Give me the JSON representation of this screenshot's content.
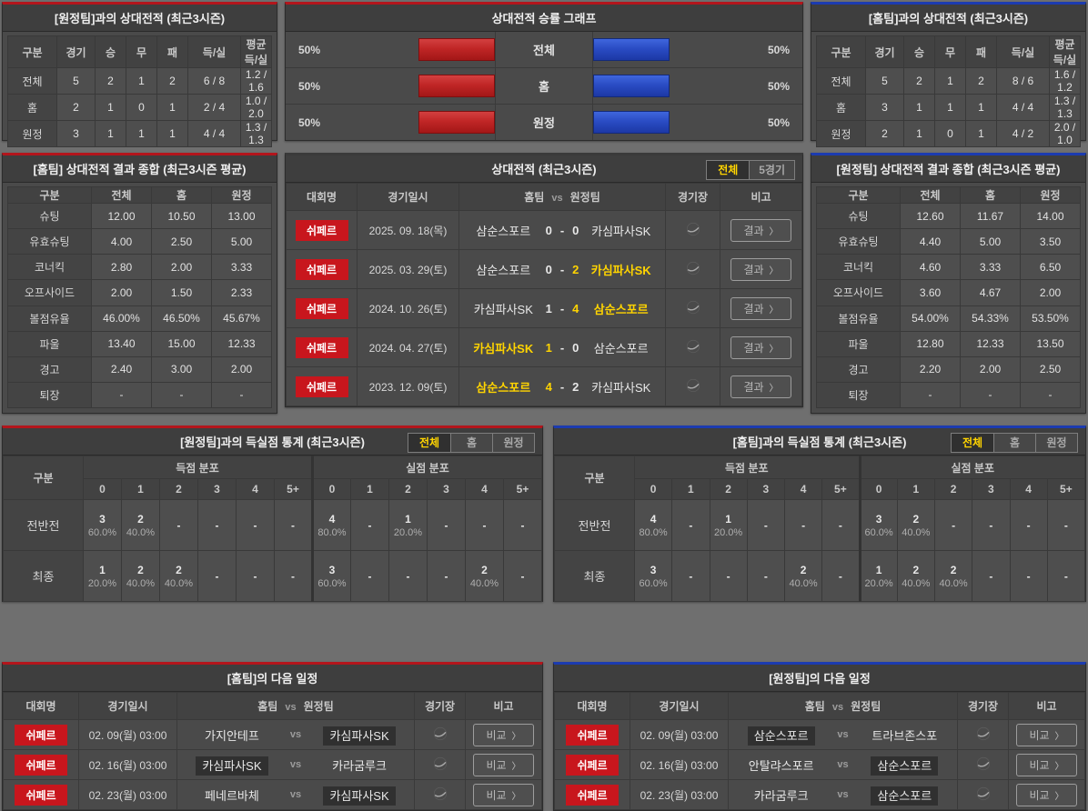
{
  "ui": {
    "vs": "vs",
    "dash": "-",
    "arrow": "〉"
  },
  "colors": {
    "accent_red": "#b3151c",
    "accent_blue": "#1c3bb0",
    "bar_red": "#c02626",
    "bar_blue": "#2a4cc4",
    "badge_red": "#c8161d",
    "win_yellow": "#ffd400",
    "panel_bg": "#4a4a4a"
  },
  "match_headers": {
    "league": "대회명",
    "datetime": "경기일시",
    "home": "홈팀",
    "vs": "vs",
    "away": "원정팀",
    "stadium": "경기장",
    "note": "비고"
  },
  "goal_common": {
    "gubun": "구분",
    "scored": "득점 분포",
    "conceded": "실점 분포",
    "cols": [
      "0",
      "1",
      "2",
      "3",
      "4",
      "5+"
    ],
    "tabs": [
      "전체",
      "홈",
      "원정"
    ]
  },
  "away_h2h": {
    "title": "[원정팀]과의 상대전적 (최근3시즌)",
    "headers": [
      "구분",
      "경기",
      "승",
      "무",
      "패",
      "득/실",
      "평균 득/실"
    ],
    "rows": [
      {
        "label": "전체",
        "cells": [
          "5",
          "2",
          "1",
          "2",
          "6 / 8",
          "1.2 / 1.6"
        ]
      },
      {
        "label": "홈",
        "cells": [
          "2",
          "1",
          "0",
          "1",
          "2 / 4",
          "1.0 / 2.0"
        ]
      },
      {
        "label": "원정",
        "cells": [
          "3",
          "1",
          "1",
          "1",
          "4 / 4",
          "1.3 / 1.3"
        ]
      }
    ]
  },
  "winrate": {
    "title": "상대전적 승률 그래프",
    "rows": [
      {
        "label": "전체",
        "left_pct": "50%",
        "right_pct": "50%",
        "left_value": 50,
        "right_value": 50
      },
      {
        "label": "홈",
        "left_pct": "50%",
        "right_pct": "50%",
        "left_value": 50,
        "right_value": 50
      },
      {
        "label": "원정",
        "left_pct": "50%",
        "right_pct": "50%",
        "left_value": 50,
        "right_value": 50
      }
    ]
  },
  "home_h2h": {
    "title": "[홈팀]과의 상대전적 (최근3시즌)",
    "headers": [
      "구분",
      "경기",
      "승",
      "무",
      "패",
      "득/실",
      "평균 득/실"
    ],
    "rows": [
      {
        "label": "전체",
        "cells": [
          "5",
          "2",
          "1",
          "2",
          "8 / 6",
          "1.6 / 1.2"
        ]
      },
      {
        "label": "홈",
        "cells": [
          "3",
          "1",
          "1",
          "1",
          "4 / 4",
          "1.3 / 1.3"
        ]
      },
      {
        "label": "원정",
        "cells": [
          "2",
          "1",
          "0",
          "1",
          "4 / 2",
          "2.0 / 1.0"
        ]
      }
    ]
  },
  "home_summary": {
    "title": "[홈팀] 상대전적 결과 종합 (최근3시즌 평균)",
    "headers": [
      "구분",
      "전체",
      "홈",
      "원정"
    ],
    "rows": [
      {
        "label": "슈팅",
        "cells": [
          "12.00",
          "10.50",
          "13.00"
        ]
      },
      {
        "label": "유효슈팅",
        "cells": [
          "4.00",
          "2.50",
          "5.00"
        ]
      },
      {
        "label": "코너킥",
        "cells": [
          "2.80",
          "2.00",
          "3.33"
        ]
      },
      {
        "label": "오프사이드",
        "cells": [
          "2.00",
          "1.50",
          "2.33"
        ]
      },
      {
        "label": "볼점유율",
        "cells": [
          "46.00%",
          "46.50%",
          "45.67%"
        ]
      },
      {
        "label": "파울",
        "cells": [
          "13.40",
          "15.00",
          "12.33"
        ]
      },
      {
        "label": "경고",
        "cells": [
          "2.40",
          "3.00",
          "2.00"
        ]
      },
      {
        "label": "퇴장",
        "cells": [
          "-",
          "-",
          "-"
        ]
      }
    ]
  },
  "h2h_matches": {
    "title": "상대전적 (최근3시즌)",
    "tabs": [
      "전체",
      "5경기"
    ],
    "action": "결과",
    "rows": [
      {
        "league": "쉬페르",
        "date": "2025. 09. 18(목)",
        "home": "삼순스포르",
        "hs": "0",
        "as": "0",
        "away": "카심파사SK"
      },
      {
        "league": "쉬페르",
        "date": "2025. 03. 29(토)",
        "home": "삼순스포르",
        "hs": "0",
        "as": "2",
        "away": "카심파사SK"
      },
      {
        "league": "쉬페르",
        "date": "2024. 10. 26(토)",
        "home": "카심파사SK",
        "hs": "1",
        "as": "4",
        "away": "삼순스포르"
      },
      {
        "league": "쉬페르",
        "date": "2024. 04. 27(토)",
        "home": "카심파사SK",
        "hs": "1",
        "as": "0",
        "away": "삼순스포르"
      },
      {
        "league": "쉬페르",
        "date": "2023. 12. 09(토)",
        "home": "삼순스포르",
        "hs": "4",
        "as": "2",
        "away": "카심파사SK"
      }
    ]
  },
  "away_summary": {
    "title": "[원정팀] 상대전적 결과 종합 (최근3시즌 평균)",
    "headers": [
      "구분",
      "전체",
      "홈",
      "원정"
    ],
    "rows": [
      {
        "label": "슈팅",
        "cells": [
          "12.60",
          "11.67",
          "14.00"
        ]
      },
      {
        "label": "유효슈팅",
        "cells": [
          "4.40",
          "5.00",
          "3.50"
        ]
      },
      {
        "label": "코너킥",
        "cells": [
          "4.60",
          "3.33",
          "6.50"
        ]
      },
      {
        "label": "오프사이드",
        "cells": [
          "3.60",
          "4.67",
          "2.00"
        ]
      },
      {
        "label": "볼점유율",
        "cells": [
          "54.00%",
          "54.33%",
          "53.50%"
        ]
      },
      {
        "label": "파울",
        "cells": [
          "12.80",
          "12.33",
          "13.50"
        ]
      },
      {
        "label": "경고",
        "cells": [
          "2.20",
          "2.00",
          "2.50"
        ]
      },
      {
        "label": "퇴장",
        "cells": [
          "-",
          "-",
          "-"
        ]
      }
    ]
  },
  "away_goal_stats": {
    "title": "[원정팀]과의 득실점 통계 (최근3시즌)",
    "rows": [
      {
        "label": "전반전",
        "cells": [
          {
            "n": "3",
            "p": "60.0%"
          },
          {
            "n": "2",
            "p": "40.0%"
          },
          {
            "n": "-",
            "p": ""
          },
          {
            "n": "-",
            "p": ""
          },
          {
            "n": "-",
            "p": ""
          },
          {
            "n": "-",
            "p": ""
          },
          {
            "n": "4",
            "p": "80.0%"
          },
          {
            "n": "-",
            "p": ""
          },
          {
            "n": "1",
            "p": "20.0%"
          },
          {
            "n": "-",
            "p": ""
          },
          {
            "n": "-",
            "p": ""
          },
          {
            "n": "-",
            "p": ""
          }
        ]
      },
      {
        "label": "최종",
        "cells": [
          {
            "n": "1",
            "p": "20.0%"
          },
          {
            "n": "2",
            "p": "40.0%"
          },
          {
            "n": "2",
            "p": "40.0%"
          },
          {
            "n": "-",
            "p": ""
          },
          {
            "n": "-",
            "p": ""
          },
          {
            "n": "-",
            "p": ""
          },
          {
            "n": "3",
            "p": "60.0%"
          },
          {
            "n": "-",
            "p": ""
          },
          {
            "n": "-",
            "p": ""
          },
          {
            "n": "-",
            "p": ""
          },
          {
            "n": "2",
            "p": "40.0%"
          },
          {
            "n": "-",
            "p": ""
          }
        ]
      }
    ]
  },
  "home_goal_stats": {
    "title": "[홈팀]과의 득실점 통계 (최근3시즌)",
    "rows": [
      {
        "label": "전반전",
        "cells": [
          {
            "n": "4",
            "p": "80.0%"
          },
          {
            "n": "-",
            "p": ""
          },
          {
            "n": "1",
            "p": "20.0%"
          },
          {
            "n": "-",
            "p": ""
          },
          {
            "n": "-",
            "p": ""
          },
          {
            "n": "-",
            "p": ""
          },
          {
            "n": "3",
            "p": "60.0%"
          },
          {
            "n": "2",
            "p": "40.0%"
          },
          {
            "n": "-",
            "p": ""
          },
          {
            "n": "-",
            "p": ""
          },
          {
            "n": "-",
            "p": ""
          },
          {
            "n": "-",
            "p": ""
          }
        ]
      },
      {
        "label": "최종",
        "cells": [
          {
            "n": "3",
            "p": "60.0%"
          },
          {
            "n": "-",
            "p": ""
          },
          {
            "n": "-",
            "p": ""
          },
          {
            "n": "-",
            "p": ""
          },
          {
            "n": "2",
            "p": "40.0%"
          },
          {
            "n": "-",
            "p": ""
          },
          {
            "n": "1",
            "p": "20.0%"
          },
          {
            "n": "2",
            "p": "40.0%"
          },
          {
            "n": "2",
            "p": "40.0%"
          },
          {
            "n": "-",
            "p": ""
          },
          {
            "n": "-",
            "p": ""
          },
          {
            "n": "-",
            "p": ""
          }
        ]
      }
    ]
  },
  "home_schedule": {
    "title": "[홈팀]의 다음 일정",
    "action": "비교",
    "rows": [
      {
        "league": "쉬페르",
        "date": "02. 09(월) 03:00",
        "home": "가지안테프",
        "away": "카심파사SK"
      },
      {
        "league": "쉬페르",
        "date": "02. 16(월) 03:00",
        "home": "카심파사SK",
        "away": "카라굼루크"
      },
      {
        "league": "쉬페르",
        "date": "02. 23(월) 03:00",
        "home": "페네르바체",
        "away": "카심파사SK"
      }
    ]
  },
  "away_schedule": {
    "title": "[원정팀]의 다음 일정",
    "action": "비교",
    "rows": [
      {
        "league": "쉬페르",
        "date": "02. 09(월) 03:00",
        "home": "삼순스포르",
        "away": "트라브존스포"
      },
      {
        "league": "쉬페르",
        "date": "02. 16(월) 03:00",
        "home": "안탈랴스포르",
        "away": "삼순스포르"
      },
      {
        "league": "쉬페르",
        "date": "02. 23(월) 03:00",
        "home": "카라굼루크",
        "away": "삼순스포르"
      }
    ]
  }
}
